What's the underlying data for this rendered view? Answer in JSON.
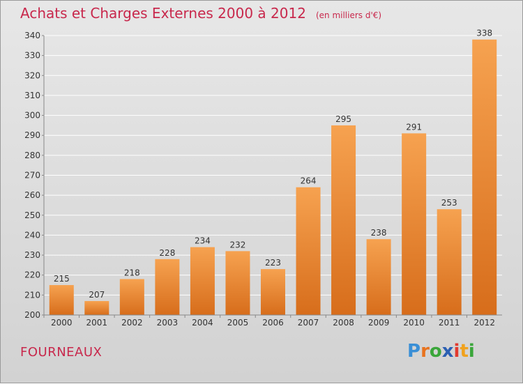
{
  "header": {
    "title": "Achats et Charges Externes 2000 à 2012",
    "unit": "(en milliers d'€)"
  },
  "footer": {
    "commune": "FOURNEAUX"
  },
  "logo": {
    "text": "Proxiti",
    "letters": [
      {
        "char": "P",
        "color": "#3a8fd6"
      },
      {
        "char": "r",
        "color": "#e8731f"
      },
      {
        "char": "o",
        "color": "#3aa63a"
      },
      {
        "char": "x",
        "color": "#2b5fb3"
      },
      {
        "char": "i",
        "color": "#e23a2e"
      },
      {
        "char": "t",
        "color": "#f0a21e"
      },
      {
        "char": "i",
        "color": "#3aa63a"
      }
    ]
  },
  "colors": {
    "accent": "#c8284c",
    "bar_top": "#f6a250",
    "bar_bottom": "#d76d1b",
    "grid": "#ffffff",
    "axis_text": "#333333"
  },
  "chart_data": {
    "type": "bar",
    "categories": [
      "2000",
      "2001",
      "2002",
      "2003",
      "2004",
      "2005",
      "2006",
      "2007",
      "2008",
      "2009",
      "2010",
      "2011",
      "2012"
    ],
    "values": [
      215,
      207,
      218,
      228,
      234,
      232,
      223,
      264,
      295,
      238,
      291,
      253,
      338
    ],
    "title": "Achats et Charges Externes 2000 à 2012",
    "subtitle": "(en milliers d'€)",
    "xlabel": "",
    "ylabel": "",
    "ylim": [
      200,
      340
    ],
    "yticks": [
      200,
      210,
      220,
      230,
      240,
      250,
      260,
      270,
      280,
      290,
      300,
      310,
      320,
      330,
      340
    ],
    "grid": true,
    "data_labels": true
  }
}
